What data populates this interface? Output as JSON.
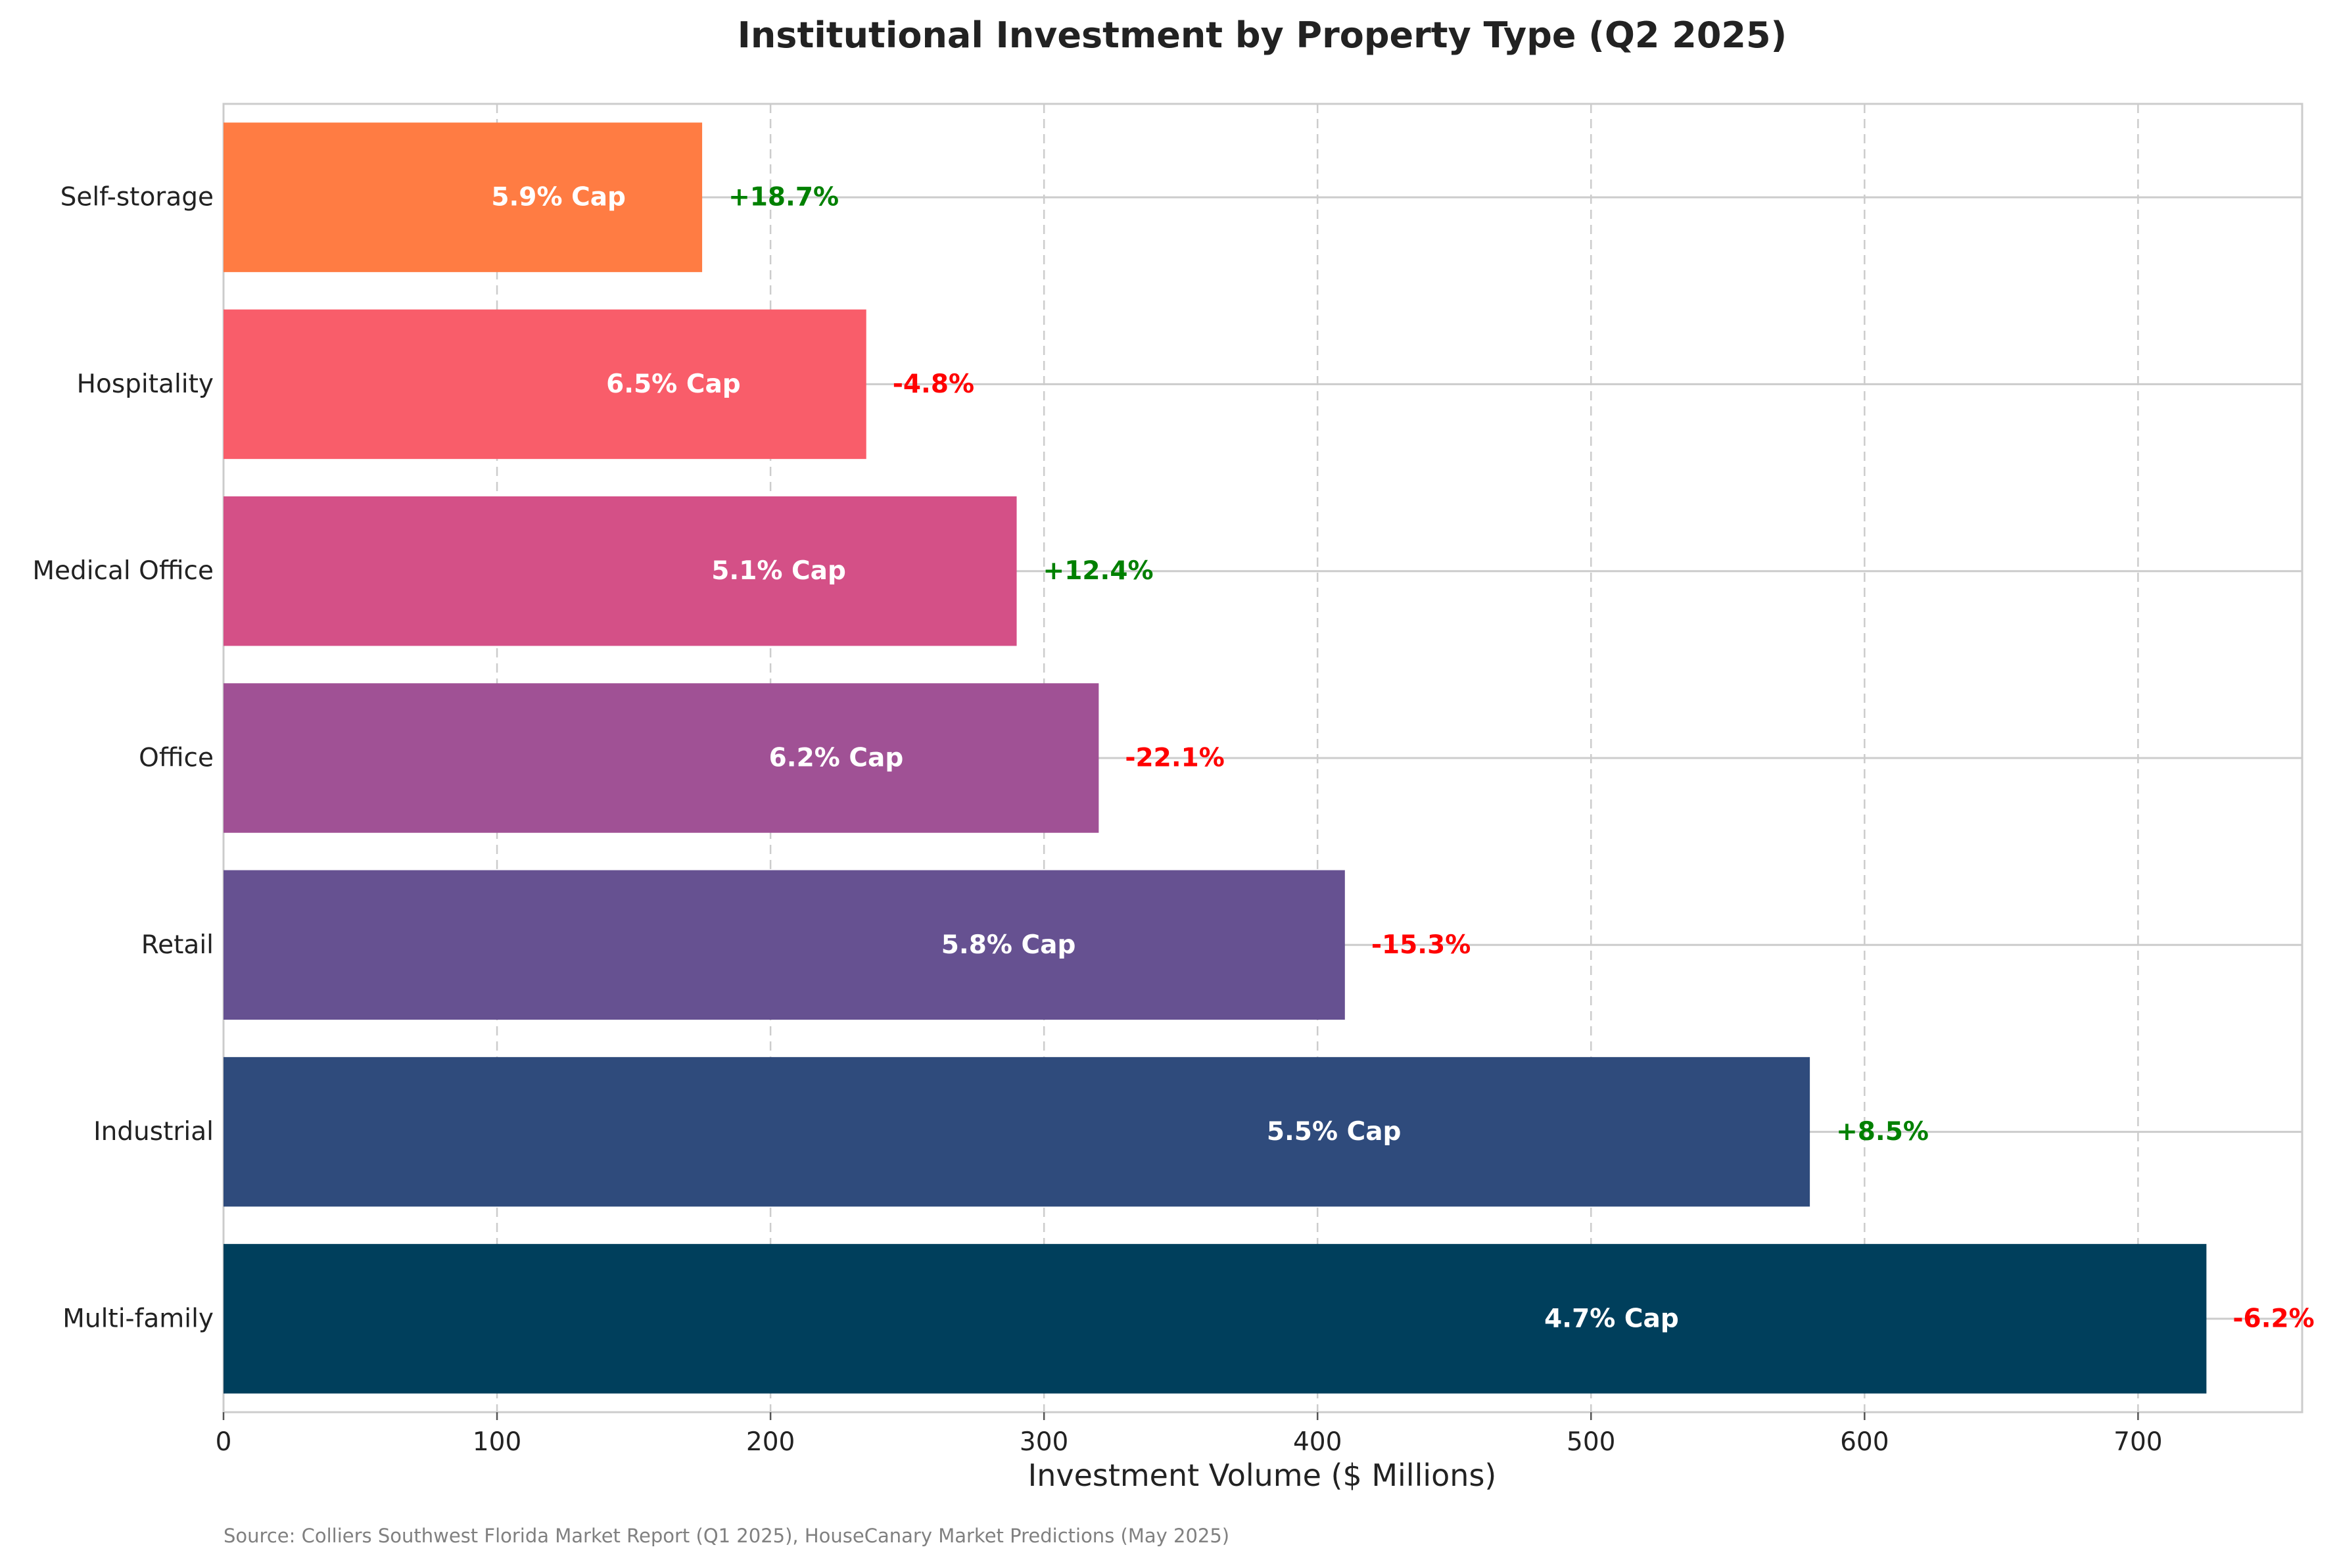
{
  "chart_data": {
    "type": "bar",
    "orientation": "horizontal",
    "title": "Institutional Investment by Property Type (Q2 2025)",
    "xlabel": "Investment Volume ($ Millions)",
    "ylabel": "",
    "xlim": [
      0,
      760
    ],
    "xticks": [
      0,
      100,
      200,
      300,
      400,
      500,
      600,
      700
    ],
    "grid": true,
    "categories": [
      "Self-storage",
      "Hospitality",
      "Medical Office",
      "Office",
      "Retail",
      "Industrial",
      "Multi-family"
    ],
    "values": [
      175,
      235,
      290,
      320,
      410,
      580,
      725
    ],
    "cap_labels": [
      "5.9% Cap",
      "6.5% Cap",
      "5.1% Cap",
      "6.2% Cap",
      "5.8% Cap",
      "5.5% Cap",
      "4.7% Cap"
    ],
    "change_labels": [
      "+18.7%",
      "-4.8%",
      "+12.4%",
      "-22.1%",
      "-15.3%",
      "+8.5%",
      "-6.2%"
    ],
    "bar_colors": [
      "#ff7c43",
      "#f95d6a",
      "#d45087",
      "#a05195",
      "#665191",
      "#2f4b7c",
      "#003f5c"
    ],
    "positive_color": "#008000",
    "negative_color": "#ff0000",
    "source": "Source: Colliers Southwest Florida Market Report (Q1 2025), HouseCanary Market Predictions (May 2025)"
  }
}
